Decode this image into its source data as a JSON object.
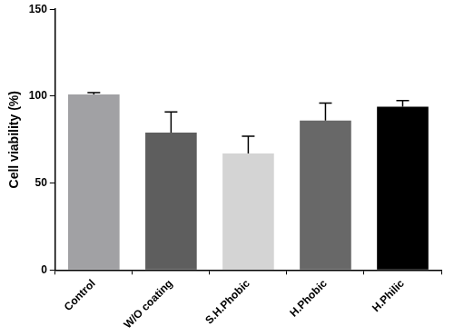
{
  "chart_data": {
    "type": "bar",
    "y_label": "Cell viability (%)",
    "categories": [
      "Control",
      "W/O coating",
      "S.H.Phobic",
      "H.Phobic",
      "H.Philic"
    ],
    "values": [
      101,
      79,
      67,
      86,
      94
    ],
    "errors": [
      1,
      12,
      10,
      10,
      3.5
    ],
    "colors": [
      "#a1a1a4",
      "#5e5e5e",
      "#d4d4d4",
      "#686868",
      "#000000"
    ],
    "ylim": [
      0,
      150
    ],
    "yticks": [
      0,
      50,
      100,
      150
    ],
    "grid": false
  }
}
